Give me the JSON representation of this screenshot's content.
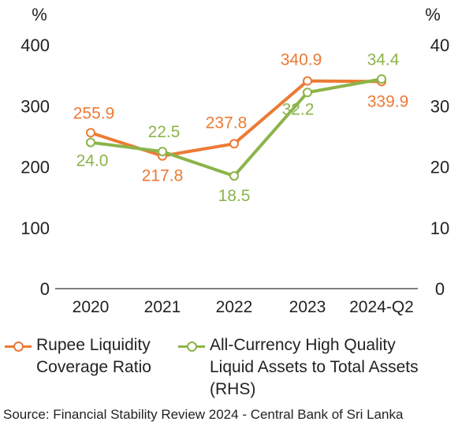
{
  "chart_data": {
    "type": "line",
    "categories": [
      "2020",
      "2021",
      "2022",
      "2023",
      "2024-Q2"
    ],
    "left_axis": {
      "unit": "%",
      "ticks": [
        "0",
        "100",
        "200",
        "300",
        "400"
      ],
      "ylim": [
        0,
        400
      ]
    },
    "right_axis": {
      "unit": "%",
      "ticks": [
        "0",
        "10",
        "20",
        "30",
        "40"
      ],
      "ylim": [
        0,
        40
      ]
    },
    "series": [
      {
        "name": "Rupee Liquidity Coverage Ratio",
        "axis": "left",
        "color": "#ec7a34",
        "values": [
          255.9,
          217.8,
          237.8,
          340.9,
          339.9
        ],
        "labels": [
          "255.9",
          "217.8",
          "237.8",
          "340.9",
          "339.9"
        ]
      },
      {
        "name": "All-Currency High Quality Liquid Assets to Total Assets (RHS)",
        "axis": "right",
        "color": "#8cb44a",
        "values": [
          24.0,
          22.5,
          18.5,
          32.2,
          34.4
        ],
        "labels": [
          "24.0",
          "22.5",
          "18.5",
          "32.2",
          "34.4"
        ]
      }
    ],
    "grid": false,
    "legend_position": "bottom"
  },
  "legend": {
    "s1_line1": "Rupee Liquidity",
    "s1_line2": "Coverage Ratio",
    "s2_line1": "All-Currency High Quality",
    "s2_line2": "Liquid Assets to Total Assets",
    "s2_line3": "(RHS)"
  },
  "source": "Source: Financial Stability Review 2024 - Central Bank of Sri Lanka"
}
